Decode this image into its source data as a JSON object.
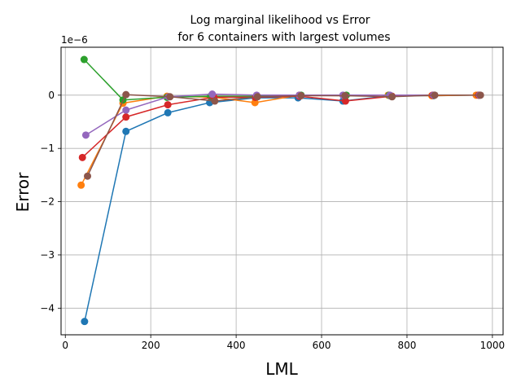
{
  "chart_data": {
    "type": "line",
    "title_line1": "Log marginal likelihood vs Error",
    "title_line2": "for 6 containers with largest volumes",
    "xlabel": "LML",
    "ylabel": "Error",
    "y_offset_label": "1e−6",
    "xlim": [
      -10,
      1025
    ],
    "ylim": [
      -4.5,
      0.9
    ],
    "xticks": [
      0,
      200,
      400,
      600,
      800,
      1000
    ],
    "xtick_labels": [
      "0",
      "200",
      "400",
      "600",
      "800",
      "1000"
    ],
    "yticks": [
      0,
      -1,
      -2,
      -3,
      -4
    ],
    "ytick_labels": [
      "0",
      "−1",
      "−2",
      "−3",
      "−4"
    ],
    "grid": true,
    "series": [
      {
        "color": "#1f77b4",
        "x": [
          45,
          142,
          240,
          338,
          445,
          545,
          650,
          760,
          862,
          968
        ],
        "y": [
          -4.25,
          -0.68,
          -0.33,
          -0.14,
          -0.05,
          -0.05,
          -0.11,
          -0.01,
          -0.01,
          0.0
        ]
      },
      {
        "color": "#ff7f0e",
        "x": [
          37,
          135,
          238,
          348,
          444,
          548,
          652,
          756,
          858,
          962
        ],
        "y": [
          -1.69,
          -0.15,
          -0.02,
          -0.04,
          -0.14,
          0.0,
          -0.01,
          0.0,
          -0.01,
          0.0
        ]
      },
      {
        "color": "#2ca02c",
        "x": [
          44,
          135,
          238,
          340,
          448,
          552,
          658,
          758,
          864,
          968
        ],
        "y": [
          0.67,
          -0.09,
          -0.04,
          -0.02,
          -0.02,
          0.0,
          0.0,
          0.0,
          0.0,
          0.0
        ]
      },
      {
        "color": "#d62728",
        "x": [
          40,
          142,
          240,
          348,
          445,
          548,
          656,
          765,
          860,
          968
        ],
        "y": [
          -1.17,
          -0.41,
          -0.18,
          -0.04,
          -0.04,
          -0.02,
          -0.11,
          -0.02,
          0.0,
          0.0
        ]
      },
      {
        "color": "#9467bd",
        "x": [
          48,
          142,
          242,
          344,
          448,
          548,
          650,
          760,
          862,
          970
        ],
        "y": [
          -0.75,
          -0.28,
          -0.03,
          0.02,
          0.0,
          0.0,
          0.0,
          0.0,
          0.0,
          0.0
        ]
      },
      {
        "color": "#8c564b",
        "x": [
          52,
          142,
          245,
          350,
          450,
          552,
          655,
          765,
          865,
          972
        ],
        "y": [
          -1.52,
          0.01,
          -0.03,
          -0.11,
          -0.03,
          -0.01,
          -0.01,
          -0.03,
          0.0,
          0.0
        ]
      }
    ]
  }
}
